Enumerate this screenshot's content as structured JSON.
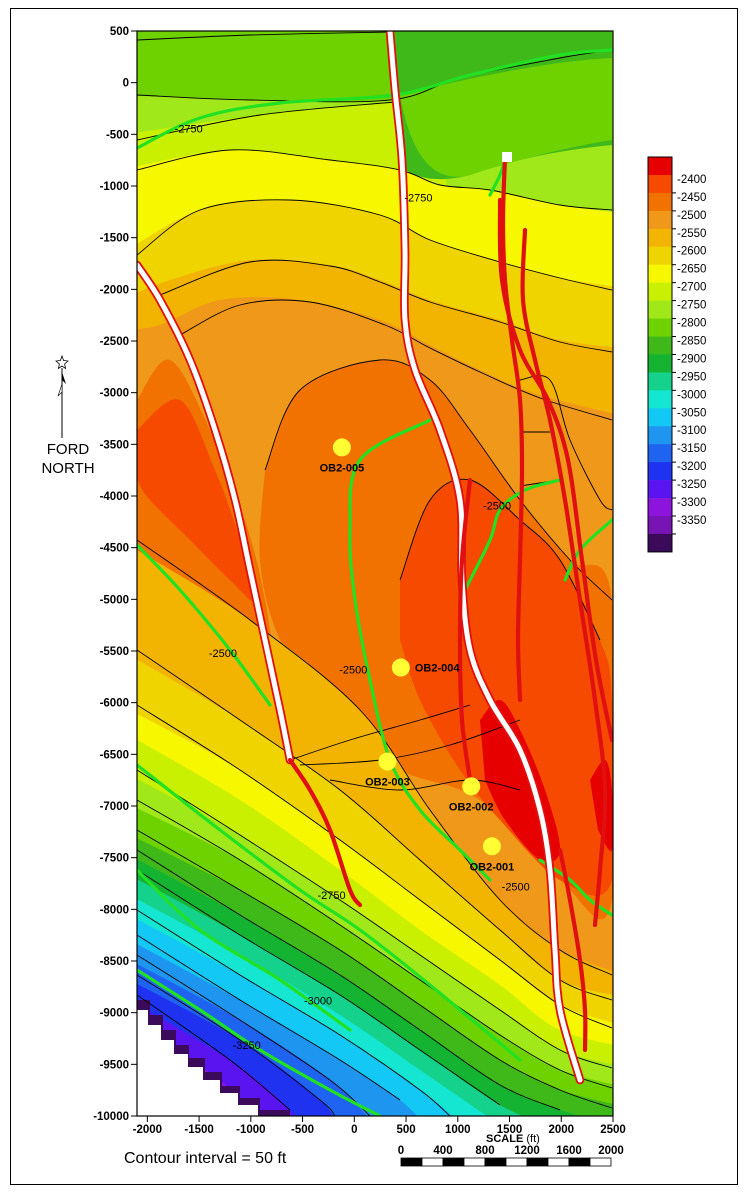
{
  "map": {
    "type": "structure-contour-map",
    "x_axis": {
      "ticks": [
        "-2000",
        "-1500",
        "-1000",
        "-500",
        "0",
        "500",
        "1000",
        "1500",
        "2000",
        "2500"
      ],
      "range": [
        -2100,
        2500
      ]
    },
    "y_axis": {
      "ticks": [
        "500",
        "0",
        "-500",
        "-1000",
        "-1500",
        "-2000",
        "-2500",
        "-3000",
        "-3500",
        "-4000",
        "-4500",
        "-5000",
        "-5500",
        "-6000",
        "-6500",
        "-7000",
        "-7500",
        "-8000",
        "-8500",
        "-9000",
        "-9500",
        "-10000"
      ],
      "range": [
        500,
        -10000
      ]
    },
    "north_arrow": {
      "line1": "FORD",
      "line2": "NORTH"
    },
    "contour_note": "Contour interval = 50 ft",
    "scale_bar": {
      "title": "SCALE",
      "unit": "(ft)",
      "labels": [
        "0",
        "400",
        "800",
        "1200",
        "1600",
        "2000"
      ]
    },
    "colorbar": {
      "labels": [
        "-2400",
        "-2450",
        "-2500",
        "-2550",
        "-2600",
        "-2650",
        "-2700",
        "-2750",
        "-2800",
        "-2850",
        "-2900",
        "-2950",
        "-3000",
        "-3050",
        "-3100",
        "-3150",
        "-3200",
        "-3250",
        "-3300",
        "-3350"
      ],
      "colors": [
        "#e60000",
        "#f54a00",
        "#f27200",
        "#f0981a",
        "#f2b400",
        "#f0d400",
        "#f7f700",
        "#c8f000",
        "#a0e81a",
        "#6ed200",
        "#3fb81a",
        "#14b432",
        "#14d28c",
        "#14e6d2",
        "#14c8f5",
        "#1e96f0",
        "#1e64f0",
        "#1e32f0",
        "#5a14f0",
        "#8c14dc",
        "#7814b4",
        "#3c0a5a"
      ]
    },
    "wells": [
      {
        "name": "OB2-005",
        "x": -120,
        "y": -3530
      },
      {
        "name": "OB2-004",
        "x": 450,
        "y": -5660
      },
      {
        "name": "OB2-003",
        "x": 320,
        "y": -6570
      },
      {
        "name": "OB2-002",
        "x": 1130,
        "y": -6810
      },
      {
        "name": "OB2-001",
        "x": 1330,
        "y": -7390
      }
    ],
    "contour_labels": [
      {
        "text": "-2750",
        "x": -1600,
        "y": -480
      },
      {
        "text": "-2750",
        "x": 620,
        "y": -1150
      },
      {
        "text": "-2500",
        "x": 1380,
        "y": -4130
      },
      {
        "text": "-2500",
        "x": -1270,
        "y": -5560
      },
      {
        "text": "-2500",
        "x": -10,
        "y": -5720
      },
      {
        "text": "-2500",
        "x": 1560,
        "y": -7820
      },
      {
        "text": "-2750",
        "x": -220,
        "y": -7900
      },
      {
        "text": "-3000",
        "x": -350,
        "y": -8920
      },
      {
        "text": "-3250",
        "x": -1040,
        "y": -9350
      }
    ]
  }
}
